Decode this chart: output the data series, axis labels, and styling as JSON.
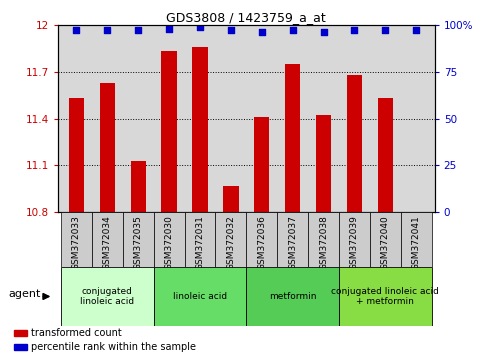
{
  "title": "GDS3808 / 1423759_a_at",
  "samples": [
    "GSM372033",
    "GSM372034",
    "GSM372035",
    "GSM372030",
    "GSM372031",
    "GSM372032",
    "GSM372036",
    "GSM372037",
    "GSM372038",
    "GSM372039",
    "GSM372040",
    "GSM372041"
  ],
  "bar_values": [
    11.53,
    11.63,
    11.13,
    11.83,
    11.86,
    10.97,
    11.41,
    11.75,
    11.42,
    11.68,
    11.53,
    10.8
  ],
  "percentile_values": [
    97,
    97,
    97,
    98,
    99,
    97,
    96,
    97,
    96,
    97,
    97,
    97
  ],
  "bar_color": "#cc0000",
  "percentile_color": "#0000cc",
  "ylim_left": [
    10.8,
    12.0
  ],
  "yticks_left": [
    10.8,
    11.1,
    11.4,
    11.7,
    12.0
  ],
  "ytick_labels_left": [
    "10.8",
    "11.1",
    "11.4",
    "11.7",
    "12"
  ],
  "yticks_right": [
    0,
    25,
    50,
    75,
    100
  ],
  "ytick_labels_right": [
    "0",
    "25",
    "50",
    "75",
    "100%"
  ],
  "groups": [
    {
      "label": "conjugated\nlinoleic acid",
      "start": 0,
      "end": 3,
      "color": "#ccffcc"
    },
    {
      "label": "linoleic acid",
      "start": 3,
      "end": 6,
      "color": "#66dd66"
    },
    {
      "label": "metformin",
      "start": 6,
      "end": 9,
      "color": "#55cc55"
    },
    {
      "label": "conjugated linoleic acid\n+ metformin",
      "start": 9,
      "end": 12,
      "color": "#88dd44"
    }
  ],
  "agent_label": "agent",
  "legend_items": [
    {
      "color": "#cc0000",
      "label": "transformed count"
    },
    {
      "color": "#0000cc",
      "label": "percentile rank within the sample"
    }
  ],
  "plot_bg_color": "#d8d8d8",
  "sample_box_color": "#cccccc",
  "bar_width": 0.5
}
